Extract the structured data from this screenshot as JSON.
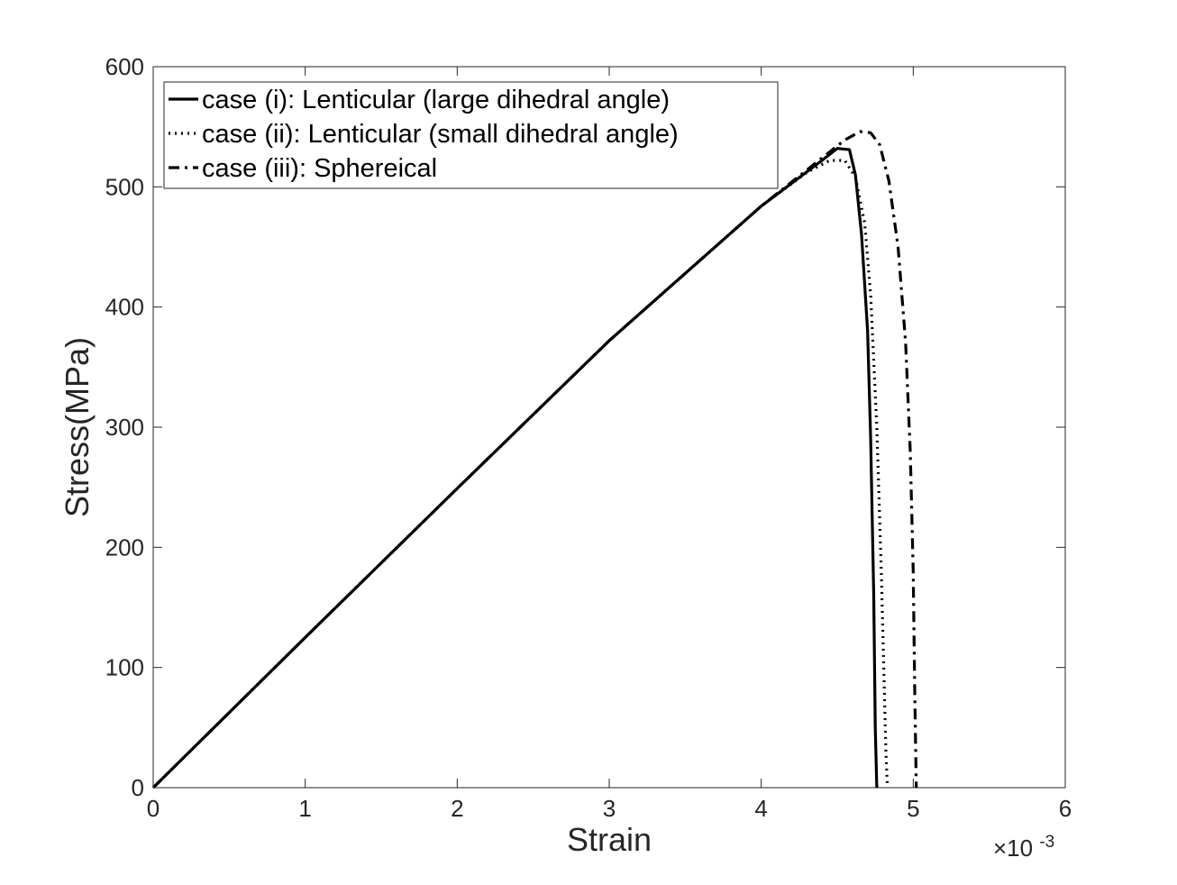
{
  "chart_data": {
    "type": "line",
    "title": "",
    "xlabel": "Strain",
    "ylabel": "Stress(MPa)",
    "x_scale_label": {
      "base": "×10",
      "exponent": "-3"
    },
    "xlim": [
      0,
      6
    ],
    "ylim": [
      0,
      600
    ],
    "x_ticks": [
      0,
      1,
      2,
      3,
      4,
      5,
      6
    ],
    "x_tick_labels": [
      "0",
      "1",
      "2",
      "3",
      "4",
      "5",
      "6"
    ],
    "y_ticks": [
      0,
      100,
      200,
      300,
      400,
      500,
      600
    ],
    "y_tick_labels": [
      "0",
      "100",
      "200",
      "300",
      "400",
      "500",
      "600"
    ],
    "grid": false,
    "legend_position": "top-left",
    "line_color": "#000000",
    "series": [
      {
        "name": "case (i): Lenticular (large dihedral angle)",
        "style": "solid",
        "x": [
          0,
          1,
          2,
          3,
          4,
          4.4,
          4.5,
          4.58,
          4.62,
          4.66,
          4.7,
          4.72,
          4.74,
          4.75,
          4.76
        ],
        "y": [
          0,
          125,
          249,
          372,
          484,
          522,
          532,
          531,
          510,
          460,
          380,
          290,
          160,
          50,
          0
        ]
      },
      {
        "name": "case (ii): Lenticular (small dihedral angle)",
        "style": "dotted",
        "x": [
          0,
          1,
          2,
          3,
          4,
          4.3,
          4.45,
          4.55,
          4.62,
          4.68,
          4.72,
          4.76,
          4.79,
          4.81,
          4.82,
          4.83
        ],
        "y": [
          0,
          125,
          249,
          372,
          484,
          512,
          522,
          522,
          508,
          470,
          410,
          300,
          180,
          80,
          30,
          0
        ]
      },
      {
        "name": "case (iii): Sphereical",
        "style": "dashdot",
        "x": [
          0,
          1,
          2,
          3,
          4,
          4.4,
          4.55,
          4.65,
          4.72,
          4.78,
          4.84,
          4.9,
          4.95,
          4.98,
          5.0,
          5.01,
          5.02
        ],
        "y": [
          0,
          125,
          249,
          372,
          484,
          524,
          539,
          546,
          545,
          535,
          505,
          450,
          370,
          280,
          180,
          80,
          0
        ]
      }
    ]
  }
}
